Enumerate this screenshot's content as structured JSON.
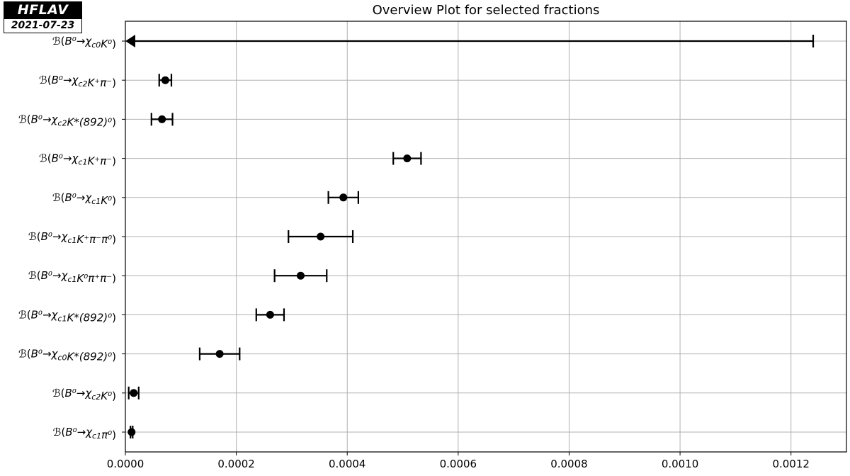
{
  "logo": {
    "name": "HFLAV",
    "date": "2021-07-23"
  },
  "chart_data": {
    "type": "scatter",
    "title": "Overview Plot for selected fractions",
    "xlim": [
      0,
      0.0013
    ],
    "x_ticks": [
      0.0,
      0.0002,
      0.0004,
      0.0006,
      0.0008,
      0.001,
      0.0012
    ],
    "x_tick_labels": [
      "0.0000",
      "0.0002",
      "0.0004",
      "0.0006",
      "0.0008",
      "0.0010",
      "0.0012"
    ],
    "grid": true,
    "error_bars": true,
    "categories": [
      {
        "label": "ℬ(B⁰→χc0K⁰)",
        "value": null,
        "upper_limit": 0.00124,
        "err_low": null,
        "err_high": null
      },
      {
        "label": "ℬ(B⁰→χc2K⁺π⁻)",
        "value": 7.2e-05,
        "err_low": 1.1e-05,
        "err_high": 1.1e-05
      },
      {
        "label": "ℬ(B⁰→χc2K*(892)⁰)",
        "value": 6.6e-05,
        "err_low": 1.9e-05,
        "err_high": 1.9e-05
      },
      {
        "label": "ℬ(B⁰→χc1K⁺π⁻)",
        "value": 0.000508,
        "err_low": 2.5e-05,
        "err_high": 2.5e-05
      },
      {
        "label": "ℬ(B⁰→χc1K⁰)",
        "value": 0.000393,
        "err_low": 2.7e-05,
        "err_high": 2.7e-05
      },
      {
        "label": "ℬ(B⁰→χc1K⁺π⁻π⁰)",
        "value": 0.000352,
        "err_low": 5.8e-05,
        "err_high": 5.8e-05
      },
      {
        "label": "ℬ(B⁰→χc1K⁰π⁺π⁻)",
        "value": 0.000316,
        "err_low": 4.7e-05,
        "err_high": 4.7e-05
      },
      {
        "label": "ℬ(B⁰→χc1K*(892)⁰)",
        "value": 0.000261,
        "err_low": 2.5e-05,
        "err_high": 2.5e-05
      },
      {
        "label": "ℬ(B⁰→χc0K*(892)⁰)",
        "value": 0.00017,
        "err_low": 3.6e-05,
        "err_high": 3.6e-05
      },
      {
        "label": "ℬ(B⁰→χc2K⁰)",
        "value": 1.5e-05,
        "err_low": 9e-06,
        "err_high": 9e-06
      },
      {
        "label": "ℬ(B⁰→χc1π⁰)",
        "value": 1.12e-05,
        "err_low": 2e-06,
        "err_high": 2e-06
      }
    ]
  }
}
